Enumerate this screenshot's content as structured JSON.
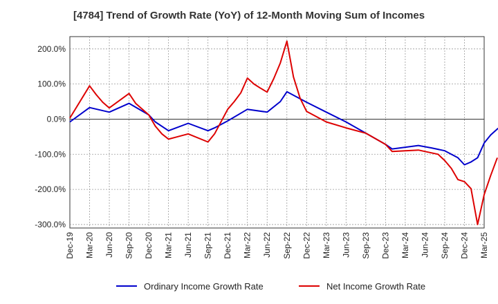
{
  "chart_data": {
    "type": "line",
    "title": "[4784]  Trend of Growth Rate (YoY) of 12-Month Moving Sum of Incomes",
    "xlabel": "",
    "ylabel": "",
    "x_tick_labels": [
      "Dec-19",
      "Mar-20",
      "Jun-20",
      "Sep-20",
      "Dec-20",
      "Mar-21",
      "Jun-21",
      "Sep-21",
      "Dec-21",
      "Mar-22",
      "Jun-22",
      "Sep-22",
      "Dec-22",
      "Mar-23",
      "Jun-23",
      "Sep-23",
      "Dec-23",
      "Mar-24",
      "Jun-24",
      "Sep-24",
      "Dec-24",
      "Mar-25"
    ],
    "y_ticks": [
      200,
      100,
      0,
      -100,
      -200,
      -300
    ],
    "y_tick_labels": [
      "200.0%",
      "100.0%",
      "0.0%",
      "-100.0%",
      "-200.0%",
      "-300.0%"
    ],
    "ylim": [
      -310,
      235
    ],
    "grid": true,
    "legend_position": "bottom",
    "series": [
      {
        "name": "Ordinary Income Growth Rate",
        "color": "#0000cc",
        "points": [
          [
            0,
            -8
          ],
          [
            3,
            33
          ],
          [
            6,
            20
          ],
          [
            9,
            45
          ],
          [
            12,
            12
          ],
          [
            13,
            -8
          ],
          [
            15,
            -33
          ],
          [
            18,
            -12
          ],
          [
            21,
            -33
          ],
          [
            22,
            -25
          ],
          [
            24,
            -5
          ],
          [
            27,
            28
          ],
          [
            30,
            20
          ],
          [
            32,
            50
          ],
          [
            33,
            78
          ],
          [
            36,
            48
          ],
          [
            39,
            20
          ],
          [
            42,
            -8
          ],
          [
            45,
            -40
          ],
          [
            48,
            -72
          ],
          [
            49,
            -85
          ],
          [
            51,
            -80
          ],
          [
            53,
            -75
          ],
          [
            55,
            -82
          ],
          [
            57,
            -90
          ],
          [
            59,
            -110
          ],
          [
            60,
            -130
          ],
          [
            61,
            -122
          ],
          [
            62,
            -110
          ],
          [
            63,
            -68
          ],
          [
            64,
            -45
          ],
          [
            65,
            -28
          ],
          [
            66,
            -15
          ]
        ]
      },
      {
        "name": "Net Income Growth Rate",
        "color": "#dd0000",
        "points": [
          [
            0,
            3
          ],
          [
            3,
            95
          ],
          [
            4,
            70
          ],
          [
            5,
            48
          ],
          [
            6,
            32
          ],
          [
            9,
            73
          ],
          [
            10,
            45
          ],
          [
            12,
            12
          ],
          [
            13,
            -20
          ],
          [
            14,
            -42
          ],
          [
            15,
            -57
          ],
          [
            18,
            -42
          ],
          [
            21,
            -65
          ],
          [
            22,
            -42
          ],
          [
            24,
            28
          ],
          [
            25,
            50
          ],
          [
            26,
            75
          ],
          [
            27,
            117
          ],
          [
            28,
            100
          ],
          [
            29,
            88
          ],
          [
            30,
            77
          ],
          [
            31,
            115
          ],
          [
            32,
            160
          ],
          [
            33,
            222
          ],
          [
            34,
            120
          ],
          [
            35,
            60
          ],
          [
            36,
            22
          ],
          [
            39,
            -8
          ],
          [
            42,
            -25
          ],
          [
            45,
            -40
          ],
          [
            48,
            -72
          ],
          [
            49,
            -92
          ],
          [
            53,
            -88
          ],
          [
            56,
            -100
          ],
          [
            57,
            -118
          ],
          [
            58,
            -140
          ],
          [
            59,
            -172
          ],
          [
            60,
            -178
          ],
          [
            61,
            -198
          ],
          [
            62,
            -300
          ],
          [
            63,
            -215
          ],
          [
            64,
            -160
          ],
          [
            65,
            -110
          ]
        ]
      }
    ]
  }
}
